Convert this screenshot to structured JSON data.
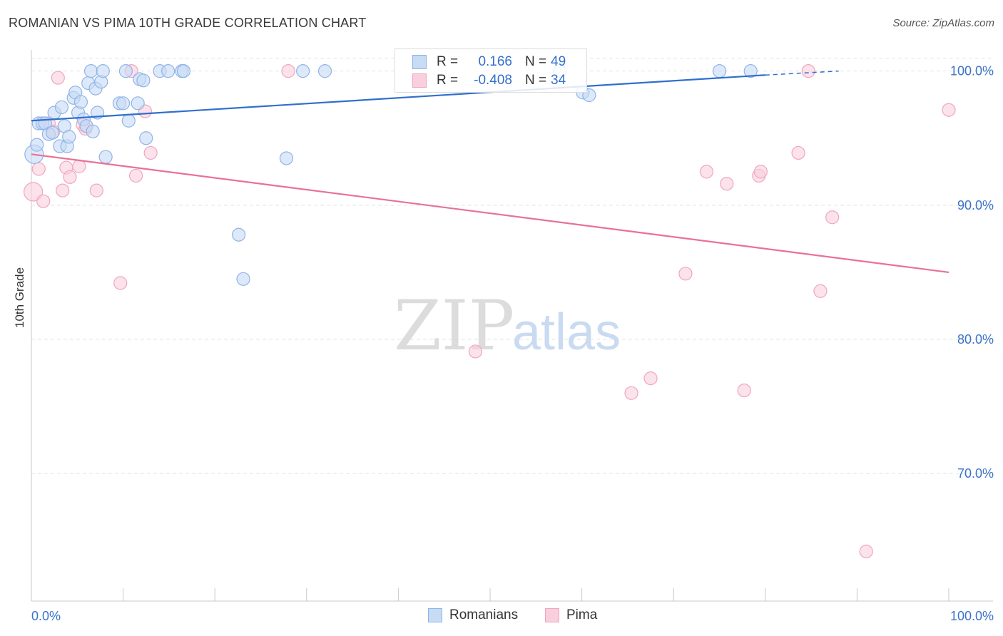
{
  "header": {
    "title": "ROMANIAN VS PIMA 10TH GRADE CORRELATION CHART",
    "source": "Source: ZipAtlas.com"
  },
  "watermark": {
    "zip": "ZIP",
    "atlas": "atlas"
  },
  "legend_top": [
    {
      "r_label": "R =",
      "r_value": "0.166",
      "n_label": "N =",
      "n_value": "49",
      "color": "#8fb4e8",
      "fill": "#c7dbf5"
    },
    {
      "r_label": "R =",
      "r_value": "-0.408",
      "n_label": "N =",
      "n_value": "34",
      "color": "#f0a6be",
      "fill": "#f8cfdd"
    }
  ],
  "legend_bottom": [
    {
      "label": "Romanians",
      "color": "#8fb4e8",
      "fill": "#c7dbf5"
    },
    {
      "label": "Pima",
      "color": "#f0a6be",
      "fill": "#f8cfdd"
    }
  ],
  "chart_data": {
    "type": "scatter",
    "title": "ROMANIAN VS PIMA 10TH GRADE CORRELATION CHART",
    "xlabel": "",
    "ylabel": "10th Grade",
    "xlim": [
      0,
      100
    ],
    "ylim": [
      60.5,
      102
    ],
    "x_tick_labels": [
      {
        "value": 0,
        "label": "0.0%"
      },
      {
        "value": 100,
        "label": "100.0%"
      }
    ],
    "y_tick_labels": [
      {
        "value": 100,
        "label": "100.0%"
      },
      {
        "value": 90,
        "label": "90.0%"
      },
      {
        "value": 80,
        "label": "80.0%"
      },
      {
        "value": 70,
        "label": "70.0%"
      }
    ],
    "grid": true,
    "legend_position": "top-center",
    "colors": {
      "blue_stroke": "#8fb4e8",
      "blue_fill": "#c7dbf5",
      "blue_line": "#2f6fcf",
      "pink_stroke": "#f0a6be",
      "pink_fill": "#f8cfdd",
      "pink_line": "#e8709a",
      "tick_text": "#3b73c8"
    },
    "series": [
      {
        "name": "Romanians",
        "trend": {
          "x": [
            0,
            80,
            88
          ],
          "y": [
            96.3,
            99.7,
            100.0
          ]
        },
        "points": [
          {
            "x": 0.3,
            "y": 93.8
          },
          {
            "x": 0.6,
            "y": 94.5
          },
          {
            "x": 0.8,
            "y": 96.1
          },
          {
            "x": 1.2,
            "y": 96.1
          },
          {
            "x": 1.5,
            "y": 96.1
          },
          {
            "x": 1.9,
            "y": 95.3
          },
          {
            "x": 2.3,
            "y": 95.4
          },
          {
            "x": 2.5,
            "y": 96.9
          },
          {
            "x": 3.1,
            "y": 94.4
          },
          {
            "x": 3.3,
            "y": 97.3
          },
          {
            "x": 3.6,
            "y": 95.9
          },
          {
            "x": 3.9,
            "y": 94.4
          },
          {
            "x": 4.1,
            "y": 95.1
          },
          {
            "x": 4.6,
            "y": 98.0
          },
          {
            "x": 4.8,
            "y": 98.4
          },
          {
            "x": 5.1,
            "y": 96.9
          },
          {
            "x": 5.4,
            "y": 97.7
          },
          {
            "x": 5.7,
            "y": 96.4
          },
          {
            "x": 6.0,
            "y": 95.9
          },
          {
            "x": 6.2,
            "y": 99.1
          },
          {
            "x": 6.5,
            "y": 100.0
          },
          {
            "x": 6.7,
            "y": 95.5
          },
          {
            "x": 7.0,
            "y": 98.7
          },
          {
            "x": 7.2,
            "y": 96.9
          },
          {
            "x": 7.6,
            "y": 99.2
          },
          {
            "x": 7.8,
            "y": 100.0
          },
          {
            "x": 8.1,
            "y": 93.6
          },
          {
            "x": 9.6,
            "y": 97.6
          },
          {
            "x": 10.0,
            "y": 97.6
          },
          {
            "x": 10.3,
            "y": 100.0
          },
          {
            "x": 10.6,
            "y": 96.3
          },
          {
            "x": 11.6,
            "y": 97.6
          },
          {
            "x": 11.8,
            "y": 99.4
          },
          {
            "x": 12.2,
            "y": 99.3
          },
          {
            "x": 12.5,
            "y": 95.0
          },
          {
            "x": 14.0,
            "y": 100.0
          },
          {
            "x": 14.9,
            "y": 100.0
          },
          {
            "x": 16.4,
            "y": 100.0
          },
          {
            "x": 16.6,
            "y": 100.0
          },
          {
            "x": 22.6,
            "y": 87.8
          },
          {
            "x": 23.1,
            "y": 84.5
          },
          {
            "x": 27.8,
            "y": 93.5
          },
          {
            "x": 29.6,
            "y": 100.0
          },
          {
            "x": 32.0,
            "y": 100.0
          },
          {
            "x": 57.6,
            "y": 100.0
          },
          {
            "x": 60.1,
            "y": 98.4
          },
          {
            "x": 60.8,
            "y": 98.2
          },
          {
            "x": 75.0,
            "y": 100.0
          },
          {
            "x": 78.4,
            "y": 100.0
          }
        ]
      },
      {
        "name": "Pima",
        "trend": {
          "x": [
            0,
            100
          ],
          "y": [
            93.8,
            85.0
          ]
        },
        "points": [
          {
            "x": 0.2,
            "y": 91.0
          },
          {
            "x": 0.8,
            "y": 92.7
          },
          {
            "x": 1.3,
            "y": 90.3
          },
          {
            "x": 1.9,
            "y": 96.1
          },
          {
            "x": 2.4,
            "y": 95.5
          },
          {
            "x": 2.9,
            "y": 99.5
          },
          {
            "x": 3.4,
            "y": 91.1
          },
          {
            "x": 3.8,
            "y": 92.8
          },
          {
            "x": 4.2,
            "y": 92.1
          },
          {
            "x": 5.2,
            "y": 92.9
          },
          {
            "x": 5.6,
            "y": 96.0
          },
          {
            "x": 5.9,
            "y": 95.7
          },
          {
            "x": 7.1,
            "y": 91.1
          },
          {
            "x": 9.7,
            "y": 84.2
          },
          {
            "x": 10.9,
            "y": 100.0
          },
          {
            "x": 11.4,
            "y": 92.2
          },
          {
            "x": 12.4,
            "y": 97.0
          },
          {
            "x": 13.0,
            "y": 93.9
          },
          {
            "x": 28.0,
            "y": 100.0
          },
          {
            "x": 48.4,
            "y": 79.1
          },
          {
            "x": 65.4,
            "y": 76.0
          },
          {
            "x": 67.5,
            "y": 77.1
          },
          {
            "x": 71.3,
            "y": 84.9
          },
          {
            "x": 73.6,
            "y": 92.5
          },
          {
            "x": 75.8,
            "y": 91.6
          },
          {
            "x": 77.7,
            "y": 76.2
          },
          {
            "x": 79.3,
            "y": 92.2
          },
          {
            "x": 79.5,
            "y": 92.5
          },
          {
            "x": 83.6,
            "y": 93.9
          },
          {
            "x": 84.7,
            "y": 100.0
          },
          {
            "x": 86.0,
            "y": 83.6
          },
          {
            "x": 87.3,
            "y": 89.1
          },
          {
            "x": 91.0,
            "y": 64.2
          },
          {
            "x": 100.0,
            "y": 97.1
          }
        ]
      }
    ]
  }
}
